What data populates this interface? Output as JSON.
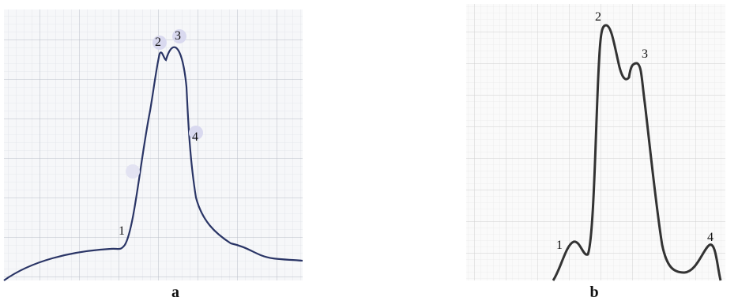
{
  "panels": [
    {
      "label": "a",
      "points": [
        "1",
        "2",
        "3",
        "4"
      ]
    },
    {
      "label": "b",
      "points": [
        "1",
        "2",
        "3",
        "4"
      ]
    }
  ]
}
